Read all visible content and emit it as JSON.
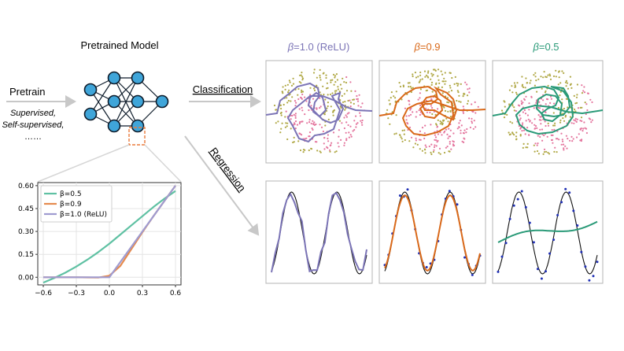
{
  "pipeline": {
    "pretrained_model_title": "Pretrained Model",
    "pretrain_label": "Pretrain",
    "pretrain_methods": [
      "Supervised,",
      "Self-supervised,",
      "……"
    ],
    "classification_label": "Classification",
    "regression_label": "Regression"
  },
  "beta_headers": [
    {
      "symbol": "β",
      "text": "=1.0 (ReLU)",
      "color": "#7b74b6"
    },
    {
      "symbol": "β",
      "text": "=0.9",
      "color": "#d9691a"
    },
    {
      "symbol": "β",
      "text": "=0.5",
      "color": "#2a9a78"
    }
  ],
  "colors": {
    "node_fill": "#3fa5d9",
    "node_stroke": "#0d1b2a",
    "arrow": "#c8c8c8",
    "highlight_box": "#ea7b3c",
    "class_point_a": "#b0a845",
    "class_point_b": "#e4769e",
    "regression_points": "#1f2fb5"
  },
  "chart_data": {
    "type": "line",
    "x": [
      -0.6,
      -0.5,
      -0.4,
      -0.3,
      -0.2,
      -0.1,
      0.0,
      0.1,
      0.2,
      0.3,
      0.4,
      0.5,
      0.6
    ],
    "series": [
      {
        "name": "β=0.5",
        "color": "#5fc1a3",
        "values": [
          -0.035,
          -0.005,
          0.03,
          0.07,
          0.115,
          0.165,
          0.22,
          0.28,
          0.34,
          0.4,
          0.46,
          0.515,
          0.565
        ]
      },
      {
        "name": "β=0.9",
        "color": "#e58a4e",
        "values": [
          0.0,
          0.0,
          0.0,
          0.0,
          -0.001,
          -0.002,
          0.01,
          0.075,
          0.185,
          0.295,
          0.4,
          0.5,
          0.6
        ]
      },
      {
        "name": "β=1.0 (ReLU)",
        "color": "#9f9bd0",
        "values": [
          0.0,
          0.0,
          0.0,
          0.0,
          0.0,
          0.0,
          0.0,
          0.1,
          0.2,
          0.3,
          0.4,
          0.5,
          0.6
        ]
      }
    ],
    "xticks": [
      -0.6,
      -0.3,
      0.0,
      0.3,
      0.6
    ],
    "xtick_labels": [
      "−0.6",
      "−0.3",
      "0.0",
      "0.3",
      "0.6"
    ],
    "yticks": [
      0.0,
      0.15,
      0.3,
      0.45,
      0.6
    ],
    "ytick_labels": [
      "0.00",
      "0.15",
      "0.30",
      "0.45",
      "0.60"
    ],
    "xlim": [
      -0.65,
      0.65
    ],
    "ylim": [
      -0.05,
      0.62
    ],
    "grid": true,
    "legend": "top-left"
  }
}
